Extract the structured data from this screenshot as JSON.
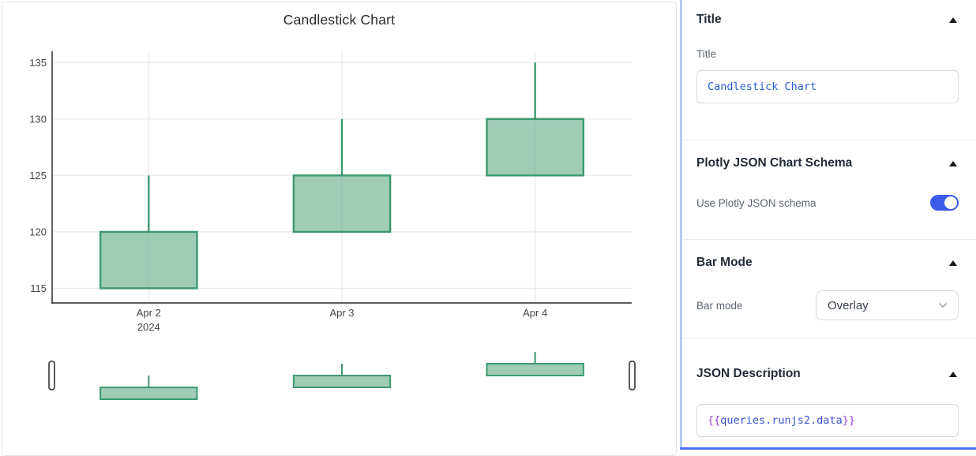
{
  "chart_data": {
    "type": "candlestick",
    "title": "Candlestick Chart",
    "categories": [
      "Apr 2",
      "Apr 3",
      "Apr 4"
    ],
    "x_sub_label": "2024",
    "candles": [
      {
        "date": "Apr 2",
        "open": 115,
        "high": 125,
        "low": 115,
        "close": 120
      },
      {
        "date": "Apr 3",
        "open": 120,
        "high": 130,
        "low": 120,
        "close": 125
      },
      {
        "date": "Apr 4",
        "open": 125,
        "high": 135,
        "low": 125,
        "close": 130
      }
    ],
    "yticks": [
      115,
      120,
      125,
      130,
      135
    ],
    "ylim": [
      113.7,
      136.0
    ],
    "grid": true,
    "legend": false,
    "rangeslider": true,
    "increasing_line_color": "#3D9970",
    "increasing_fill_opacity": 0.5,
    "grid_color": "#ebecee",
    "axis_color": "#444444",
    "tick_color": "#444444"
  },
  "inspector": {
    "accent_color": "#b3cdf8",
    "title_section": {
      "heading": "Title",
      "field_label": "Title",
      "value": "Candlestick Chart"
    },
    "schema_section": {
      "heading": "Plotly JSON Chart Schema",
      "toggle_label": "Use Plotly JSON schema",
      "toggle_on": true,
      "toggle_color": "#3b5ce8"
    },
    "barmode_section": {
      "heading": "Bar Mode",
      "field_label": "Bar mode",
      "selected_option": "Overlay"
    },
    "json_section": {
      "heading": "JSON Description",
      "value": "{{queries.runjs2.data}}"
    }
  }
}
